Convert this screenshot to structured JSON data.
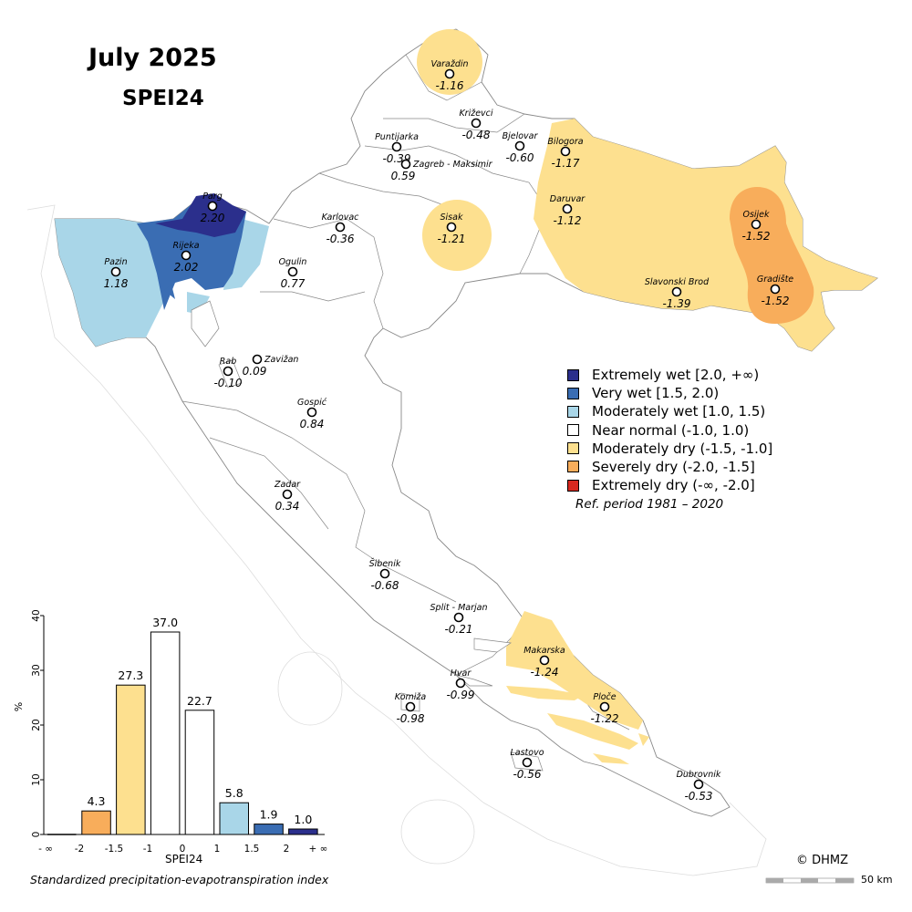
{
  "title": {
    "month": "July 2025",
    "index": "SPEI24"
  },
  "stations": [
    {
      "name": "Varaždin",
      "value": "-1.16"
    },
    {
      "name": "Križevci",
      "value": "-0.48"
    },
    {
      "name": "Puntijarka",
      "value": "-0.39"
    },
    {
      "name": "Bjelovar",
      "value": "-0.60"
    },
    {
      "name": "Bilogora",
      "value": "-1.17"
    },
    {
      "name": "Zagreb - Maksimir",
      "value": "0.59"
    },
    {
      "name": "Parg",
      "value": "2.20"
    },
    {
      "name": "Karlovac",
      "value": "-0.36"
    },
    {
      "name": "Sisak",
      "value": "-1.21"
    },
    {
      "name": "Daruvar",
      "value": "-1.12"
    },
    {
      "name": "Osijek",
      "value": "-1.52"
    },
    {
      "name": "Pazin",
      "value": "1.18"
    },
    {
      "name": "Rijeka",
      "value": "2.02"
    },
    {
      "name": "Ogulin",
      "value": "0.77"
    },
    {
      "name": "Gradište",
      "value": "-1.52"
    },
    {
      "name": "Slavonski Brod",
      "value": "-1.39"
    },
    {
      "name": "Rab",
      "value": "-0.10"
    },
    {
      "name": "Zavižan",
      "value": "0.09"
    },
    {
      "name": "Gospić",
      "value": "0.84"
    },
    {
      "name": "Zadar",
      "value": "0.34"
    },
    {
      "name": "Šibenik",
      "value": "-0.68"
    },
    {
      "name": "Split - Marjan",
      "value": "-0.21"
    },
    {
      "name": "Makarska",
      "value": "-1.24"
    },
    {
      "name": "Hvar",
      "value": "-0.99"
    },
    {
      "name": "Komiža",
      "value": "-0.98"
    },
    {
      "name": "Ploče",
      "value": "-1.22"
    },
    {
      "name": "Lastovo",
      "value": "-0.56"
    },
    {
      "name": "Dubrovnik",
      "value": "-0.53"
    }
  ],
  "legend": {
    "items": [
      {
        "label": "Extremely wet [2.0, +∞)",
        "color": "#2b2f8c"
      },
      {
        "label": "Very wet [1.5, 2.0)",
        "color": "#3a6db3"
      },
      {
        "label": "Moderately wet [1.0, 1.5)",
        "color": "#a9d6e8"
      },
      {
        "label": "Near normal (-1.0, 1.0)",
        "color": "#ffffff"
      },
      {
        "label": "Moderately dry (-1.5, -1.0]",
        "color": "#fde08f"
      },
      {
        "label": "Severely dry (-2.0, -1.5]",
        "color": "#f8ad5b"
      },
      {
        "label": "Extremely dry (-∞, -2.0]",
        "color": "#d7281f"
      }
    ],
    "ref_period": "Ref. period 1981 – 2020"
  },
  "chart_data": {
    "type": "bar",
    "categories": [
      "-∞..-2",
      "-2..-1.5",
      "-1.5..-1",
      "-1..0",
      "0..1",
      "1..1.5",
      "1.5..2",
      "2..+∞"
    ],
    "values": [
      0.0,
      4.3,
      27.3,
      37.0,
      22.7,
      5.8,
      1.9,
      1.0
    ],
    "value_labels": [
      "",
      "4.3",
      "27.3",
      "37.0",
      "22.7",
      "5.8",
      "1.9",
      "1.0"
    ],
    "colors": [
      "#d7281f",
      "#f8ad5b",
      "#fde08f",
      "#ffffff",
      "#ffffff",
      "#a9d6e8",
      "#3a6db3",
      "#2b2f8c"
    ],
    "x_ticks": [
      "- ∞",
      "-2",
      "-1.5",
      "-1",
      "0",
      "1",
      "1.5",
      "2",
      "+ ∞"
    ],
    "y_ticks": [
      "0",
      "10",
      "20",
      "30",
      "40"
    ],
    "ylim": [
      0,
      40
    ],
    "ylabel": "%",
    "xlabel": "SPEI24",
    "caption": "Standardized precipitation-evapotranspiration index"
  },
  "copyright": "© DHMZ",
  "scale_label": "50 km"
}
